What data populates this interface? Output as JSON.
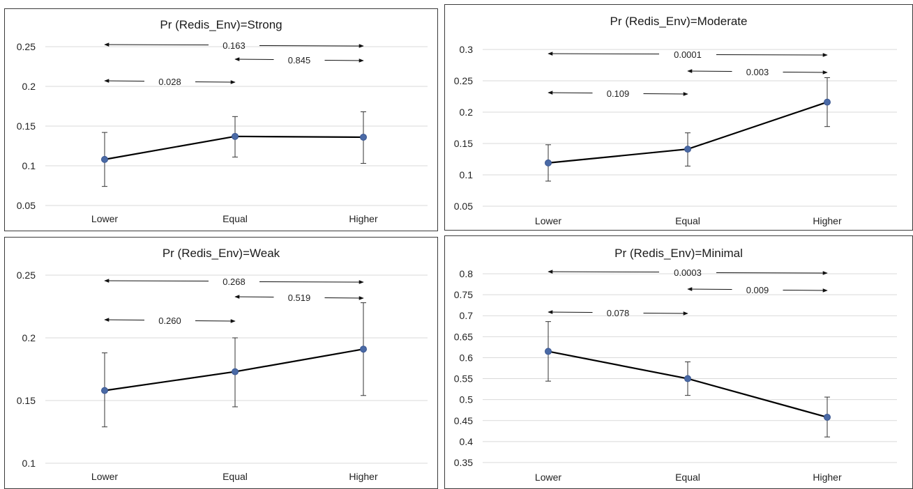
{
  "chart_data": [
    {
      "type": "line",
      "title": "Pr (Redis_Env)=Strong",
      "categories": [
        "Lower",
        "Equal",
        "Higher"
      ],
      "values": [
        0.108,
        0.137,
        0.136
      ],
      "error_low": [
        0.074,
        0.111,
        0.103
      ],
      "error_high": [
        0.142,
        0.162,
        0.168
      ],
      "ylim": [
        0.05,
        0.25
      ],
      "yticks": [
        "0.05",
        "0.1",
        "0.15",
        "0.2",
        "0.25"
      ],
      "grid": true,
      "comparisons": [
        {
          "from": "Lower",
          "to": "Higher",
          "label": "0.163",
          "row": 0
        },
        {
          "from": "Equal",
          "to": "Higher",
          "label": "0.845",
          "row": 1
        },
        {
          "from": "Lower",
          "to": "Equal",
          "label": "0.028",
          "row": 2
        }
      ]
    },
    {
      "type": "line",
      "title": "Pr (Redis_Env)=Moderate",
      "categories": [
        "Lower",
        "Equal",
        "Higher"
      ],
      "values": [
        0.119,
        0.141,
        0.216
      ],
      "error_low": [
        0.09,
        0.114,
        0.177
      ],
      "error_high": [
        0.148,
        0.167,
        0.255
      ],
      "ylim": [
        0.05,
        0.3
      ],
      "yticks": [
        "0.05",
        "0.1",
        "0.15",
        "0.2",
        "0.25",
        "0.3"
      ],
      "grid": true,
      "comparisons": [
        {
          "from": "Lower",
          "to": "Higher",
          "label": "0.0001",
          "row": 0
        },
        {
          "from": "Equal",
          "to": "Higher",
          "label": "0.003",
          "row": 1
        },
        {
          "from": "Lower",
          "to": "Equal",
          "label": "0.109",
          "row": 2
        }
      ]
    },
    {
      "type": "line",
      "title": "Pr (Redis_Env)=Weak",
      "categories": [
        "Lower",
        "Equal",
        "Higher"
      ],
      "values": [
        0.158,
        0.173,
        0.191
      ],
      "error_low": [
        0.129,
        0.145,
        0.154
      ],
      "error_high": [
        0.188,
        0.2,
        0.228
      ],
      "ylim": [
        0.1,
        0.25
      ],
      "yticks": [
        "0.1",
        "0.15",
        "0.2",
        "0.25"
      ],
      "grid": true,
      "comparisons": [
        {
          "from": "Lower",
          "to": "Higher",
          "label": "0.268",
          "row": 0
        },
        {
          "from": "Equal",
          "to": "Higher",
          "label": "0.519",
          "row": 1
        },
        {
          "from": "Lower",
          "to": "Equal",
          "label": "0.260",
          "row": 2
        }
      ]
    },
    {
      "type": "line",
      "title": "Pr (Redis_Env)=Minimal",
      "categories": [
        "Lower",
        "Equal",
        "Higher"
      ],
      "values": [
        0.615,
        0.55,
        0.458
      ],
      "error_low": [
        0.544,
        0.51,
        0.411
      ],
      "error_high": [
        0.686,
        0.59,
        0.506
      ],
      "ylim": [
        0.35,
        0.8
      ],
      "yticks": [
        "0.35",
        "0.4",
        "0.45",
        "0.5",
        "0.55",
        "0.6",
        "0.65",
        "0.7",
        "0.75",
        "0.8"
      ],
      "grid": true,
      "comparisons": [
        {
          "from": "Lower",
          "to": "Higher",
          "label": "0.0003",
          "row": 0
        },
        {
          "from": "Equal",
          "to": "Higher",
          "label": "0.009",
          "row": 1
        },
        {
          "from": "Lower",
          "to": "Equal",
          "label": "0.078",
          "row": 2
        }
      ]
    }
  ]
}
